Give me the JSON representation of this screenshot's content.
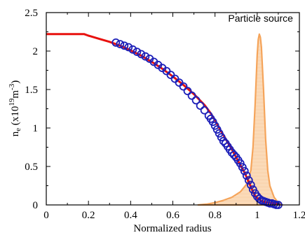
{
  "chart_data": {
    "type": "line",
    "xlabel": "Normalized radius",
    "ylabel": "n",
    "ylabel_sub": "e",
    "ylabel_units_pre": " (x10",
    "ylabel_exp": "19",
    "ylabel_mid": "m",
    "ylabel_exp2": "-3",
    "ylabel_close": ")",
    "xlim": [
      0,
      1.2
    ],
    "ylim": [
      0,
      2.5
    ],
    "xticks": [
      0,
      0.2,
      0.4,
      0.6,
      0.8,
      1,
      1.2
    ],
    "xtick_labels": [
      "0",
      "0.2",
      "0.4",
      "0.6",
      "0.8",
      "1",
      "1.2"
    ],
    "yticks": [
      0,
      0.5,
      1,
      1.5,
      2,
      2.5
    ],
    "ytick_labels": [
      "0",
      "0.5",
      "1",
      "1.5",
      "2",
      "2.5"
    ],
    "annotations": [
      {
        "text": "Particle source",
        "x": 1.17,
        "y": 2.38
      }
    ],
    "series": [
      {
        "style": "line",
        "color": "#e8110e",
        "x": [
          0.0,
          0.05,
          0.1,
          0.15,
          0.18,
          0.2,
          0.25,
          0.3,
          0.35,
          0.4,
          0.45,
          0.5,
          0.55,
          0.6,
          0.65,
          0.7,
          0.75,
          0.78,
          0.8,
          0.82,
          0.85,
          0.88,
          0.9,
          0.92,
          0.94,
          0.96,
          0.98,
          0.99,
          1.0,
          1.02,
          1.05,
          1.08,
          1.1
        ],
        "y": [
          2.22,
          2.22,
          2.22,
          2.22,
          2.22,
          2.2,
          2.16,
          2.12,
          2.07,
          2.01,
          1.94,
          1.86,
          1.77,
          1.67,
          1.56,
          1.44,
          1.3,
          1.19,
          1.1,
          1.0,
          0.86,
          0.72,
          0.62,
          0.52,
          0.42,
          0.3,
          0.17,
          0.12,
          0.09,
          0.05,
          0.03,
          0.02,
          0.02
        ]
      },
      {
        "style": "markers",
        "color": "#1c1fb8",
        "x": [
          0.33,
          0.35,
          0.37,
          0.39,
          0.41,
          0.43,
          0.45,
          0.47,
          0.49,
          0.51,
          0.53,
          0.55,
          0.57,
          0.59,
          0.61,
          0.63,
          0.65,
          0.67,
          0.69,
          0.71,
          0.73,
          0.75,
          0.77,
          0.78,
          0.79,
          0.8,
          0.81,
          0.82,
          0.83,
          0.84,
          0.85,
          0.86,
          0.87,
          0.88,
          0.89,
          0.9,
          0.91,
          0.92,
          0.93,
          0.94,
          0.95,
          0.96,
          0.97,
          0.98,
          0.99,
          1.0,
          1.01,
          1.02,
          1.03,
          1.04,
          1.05,
          1.06,
          1.07,
          1.08,
          1.09,
          1.1
        ],
        "y": [
          2.11,
          2.09,
          2.07,
          2.05,
          2.02,
          1.99,
          1.96,
          1.93,
          1.9,
          1.86,
          1.82,
          1.78,
          1.74,
          1.69,
          1.64,
          1.59,
          1.54,
          1.48,
          1.42,
          1.36,
          1.29,
          1.23,
          1.16,
          1.12,
          1.08,
          1.03,
          0.98,
          0.93,
          0.88,
          0.83,
          0.8,
          0.76,
          0.72,
          0.68,
          0.65,
          0.62,
          0.58,
          0.54,
          0.49,
          0.44,
          0.38,
          0.32,
          0.26,
          0.2,
          0.15,
          0.11,
          0.08,
          0.06,
          0.05,
          0.04,
          0.03,
          0.02,
          0.02,
          0.01,
          0.0,
          0.0
        ]
      },
      {
        "style": "area",
        "color": "#f5a45a",
        "fill": "#fbd7b0",
        "x": [
          0.72,
          0.76,
          0.8,
          0.84,
          0.88,
          0.92,
          0.95,
          0.97,
          0.98,
          0.99,
          1.0,
          1.005,
          1.01,
          1.015,
          1.02,
          1.03,
          1.04,
          1.05,
          1.06,
          1.08,
          1.1,
          1.12
        ],
        "y": [
          0.0,
          0.01,
          0.03,
          0.06,
          0.1,
          0.17,
          0.27,
          0.45,
          0.75,
          1.3,
          1.95,
          2.15,
          2.22,
          2.18,
          2.05,
          1.5,
          0.85,
          0.45,
          0.25,
          0.1,
          0.03,
          0.0
        ]
      }
    ]
  }
}
